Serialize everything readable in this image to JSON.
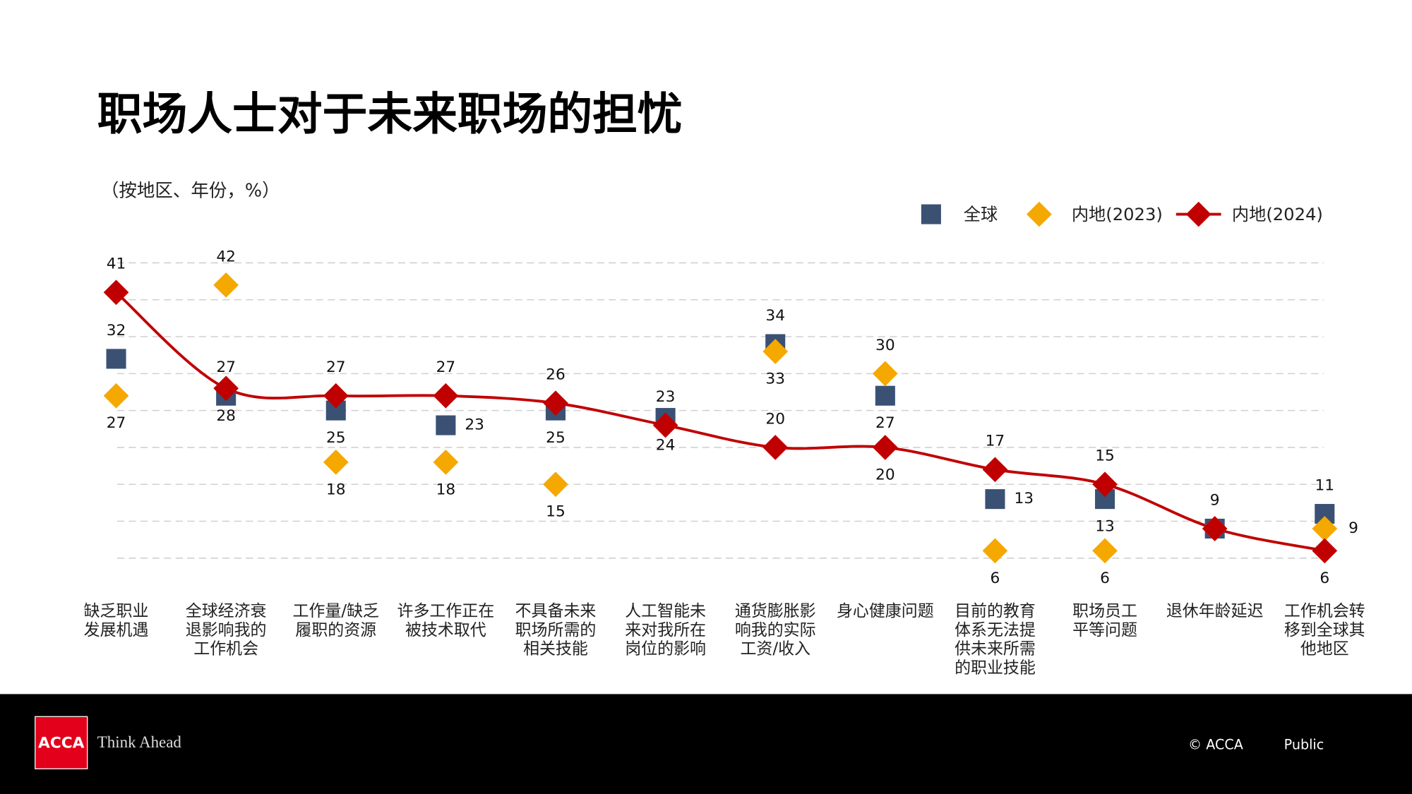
{
  "chart_data": {
    "type": "line",
    "title": "职场人士对于未来职场的担忧",
    "subtitle": "（按地区、年份，%）",
    "categories": [
      "缺乏职业\n发展机遇",
      "全球经济衰\n退影响我的\n工作机会",
      "工作量/缺乏\n履职的资源",
      "许多工作正在\n被技术取代",
      "不具备未来\n职场所需的\n相关技能",
      "人工智能未\n来对我所在\n岗位的影响",
      "通货膨胀影\n响我的实际\n工资/收入",
      "身心健康问题",
      "目前的教育\n体系无法提\n供未来所需\n的职业技能",
      "职场员工\n平等问题",
      "退休年龄延迟",
      "工作机会转\n移到全球其\n他地区"
    ],
    "series": [
      {
        "name": "全球",
        "color": "#3a5174",
        "marker": "square",
        "values": [
          32,
          27,
          25,
          23,
          25,
          24,
          34,
          27,
          13,
          13,
          9,
          11
        ]
      },
      {
        "name": "内地(2023)",
        "color": "#f5a800",
        "marker": "diamond",
        "values": [
          27,
          42,
          18,
          18,
          15,
          null,
          33,
          30,
          6,
          6,
          9,
          9
        ]
      },
      {
        "name": "内地(2024)",
        "color": "#c00000",
        "marker": "diamond",
        "line": true,
        "values": [
          41,
          28,
          27,
          27,
          26,
          23,
          20,
          20,
          17,
          15,
          9,
          6
        ]
      }
    ],
    "ylim": [
      0,
      45
    ],
    "yticks": [
      5,
      10,
      15,
      20,
      25,
      30,
      35,
      40,
      45
    ],
    "grid": true,
    "footer": {
      "logo": "ACCA",
      "tagline": "Think Ahead",
      "copyright": "© ACCA",
      "classification": "Public"
    }
  }
}
